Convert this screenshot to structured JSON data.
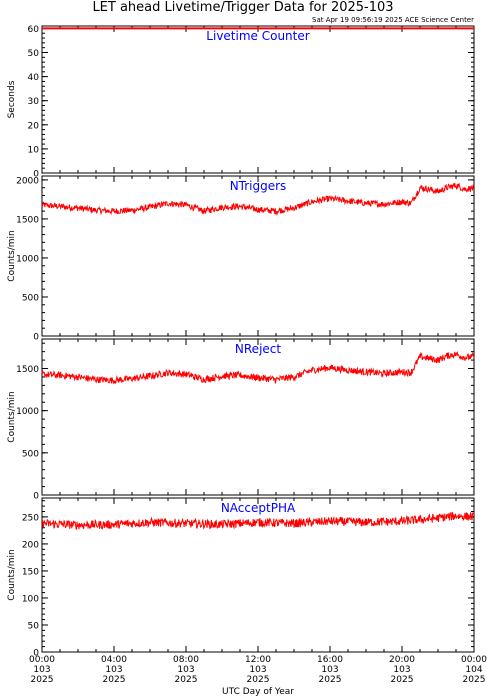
{
  "title": "LET ahead Livetime/Trigger Data for 2025-103",
  "timestamp": "Sat Apr 19 09:56:19 2025 ACE Science Center",
  "x_axis": {
    "label": "UTC Day of Year",
    "ticks": [
      {
        "hour": 0,
        "time": "00:00",
        "doy": "103",
        "year": "2025"
      },
      {
        "hour": 4,
        "time": "04:00",
        "doy": "103",
        "year": "2025"
      },
      {
        "hour": 8,
        "time": "08:00",
        "doy": "103",
        "year": "2025"
      },
      {
        "hour": 12,
        "time": "12:00",
        "doy": "103",
        "year": "2025"
      },
      {
        "hour": 16,
        "time": "16:00",
        "doy": "103",
        "year": "2025"
      },
      {
        "hour": 20,
        "time": "20:00",
        "doy": "103",
        "year": "2025"
      },
      {
        "hour": 24,
        "time": "00:00",
        "doy": "104",
        "year": "2025"
      }
    ]
  },
  "colors": {
    "series": "#ff0000",
    "panel_title": "#0000ff",
    "axes": "#000000"
  },
  "chart_data": [
    {
      "type": "line",
      "panel_title": "Livetime Counter",
      "ylabel": "Seconds",
      "ylim": [
        0,
        61
      ],
      "yticks": [
        0,
        10,
        20,
        30,
        40,
        50,
        60
      ],
      "xlim": [
        0,
        24
      ],
      "x_unit": "hours UTC, day 103",
      "x": [
        0,
        24
      ],
      "y": [
        60,
        60
      ]
    },
    {
      "type": "line",
      "panel_title": "NTriggers",
      "ylabel": "Counts/min",
      "ylim": [
        0,
        2050
      ],
      "yticks": [
        0,
        500,
        1000,
        1500,
        2000
      ],
      "xlim": [
        0,
        24
      ],
      "x_unit": "hours UTC, day 103",
      "x": [
        0,
        1,
        2,
        3,
        4,
        5,
        6,
        7,
        8,
        9,
        10,
        11,
        12,
        13,
        14,
        15,
        16,
        17,
        18,
        19,
        20,
        20.5,
        21,
        21.5,
        22,
        22.5,
        23,
        23.5,
        24
      ],
      "y": [
        1680,
        1660,
        1640,
        1610,
        1600,
        1610,
        1650,
        1700,
        1680,
        1600,
        1650,
        1660,
        1620,
        1600,
        1640,
        1720,
        1760,
        1730,
        1700,
        1690,
        1720,
        1700,
        1900,
        1880,
        1850,
        1900,
        1930,
        1880,
        1900
      ],
      "noise": 40
    },
    {
      "type": "line",
      "panel_title": "NReject",
      "ylabel": "Counts/min",
      "ylim": [
        0,
        1850
      ],
      "yticks": [
        0,
        500,
        1000,
        1500
      ],
      "xlim": [
        0,
        24
      ],
      "x_unit": "hours UTC, day 103",
      "x": [
        0,
        1,
        2,
        3,
        4,
        5,
        6,
        7,
        8,
        9,
        10,
        11,
        12,
        13,
        14,
        15,
        16,
        17,
        18,
        19,
        20,
        20.5,
        21,
        21.5,
        22,
        22.5,
        23,
        23.5,
        24
      ],
      "y": [
        1430,
        1420,
        1400,
        1370,
        1360,
        1380,
        1410,
        1450,
        1430,
        1370,
        1410,
        1420,
        1390,
        1370,
        1400,
        1480,
        1510,
        1480,
        1460,
        1440,
        1460,
        1450,
        1640,
        1620,
        1600,
        1650,
        1670,
        1630,
        1640
      ],
      "noise": 40
    },
    {
      "type": "line",
      "panel_title": "NAcceptPHA",
      "ylabel": "Counts/min",
      "ylim": [
        0,
        285
      ],
      "yticks": [
        0,
        50,
        100,
        150,
        200,
        250
      ],
      "xlim": [
        0,
        24
      ],
      "x_unit": "hours UTC, day 103",
      "x": [
        0,
        2,
        4,
        6,
        8,
        10,
        12,
        14,
        16,
        18,
        20,
        21,
        22,
        23,
        24
      ],
      "y": [
        238,
        235,
        236,
        240,
        238,
        236,
        240,
        238,
        242,
        240,
        242,
        245,
        248,
        252,
        250
      ],
      "noise": 8
    }
  ]
}
